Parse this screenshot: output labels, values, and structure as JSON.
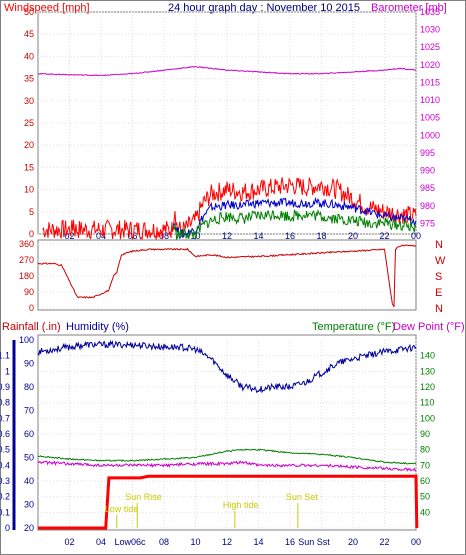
{
  "header": {
    "windspeed_label": "Windspeed [mph]",
    "title": "24 hour graph day : November 10 2015",
    "barometer_label": "Barometer [mb]"
  },
  "mid_labels": {
    "rainfall": "Rainfall (.in)",
    "humidity": "Humidity (%)",
    "temperature": "Temperature (°F)",
    "dewpoint": "Dew Point (°F)"
  },
  "colors": {
    "wind_gust": "#ff0000",
    "wind_avg": "#0000cc",
    "wind_min": "#008000",
    "barometer": "#cc00cc",
    "direction": "#cc0000",
    "humidity": "#000099",
    "temperature": "#008000",
    "dewpoint": "#cc00cc",
    "rain": "#ff0000",
    "tide_sun": "#cccc00"
  },
  "chart_data": [
    {
      "type": "line",
      "x_ticks": [
        "02",
        "04",
        "06",
        "08",
        "10",
        "12",
        "14",
        "16",
        "18",
        "20",
        "22",
        "00"
      ],
      "xlim": [
        0,
        24
      ],
      "left_ticks": [
        "0",
        "5",
        "10",
        "15",
        "20",
        "25",
        "30",
        "35",
        "40",
        "45",
        "50"
      ],
      "ylim": [
        0,
        50
      ],
      "right_ticks": [
        "975",
        "980",
        "985",
        "990",
        "995",
        "1000",
        "1005",
        "1010",
        "1015",
        "1020",
        "1025",
        "1030",
        "1035"
      ],
      "y2lim": [
        972,
        1035
      ],
      "series": [
        {
          "name": "gust",
          "x": [
            0.3,
            2.2,
            2.25,
            2.35,
            8.5,
            8.7,
            8.8,
            9.0,
            9.3,
            10.0,
            10.5,
            11,
            12,
            13,
            14,
            15,
            16,
            17,
            18,
            19,
            20,
            21,
            22,
            23,
            24
          ],
          "y": [
            1,
            1,
            3,
            1,
            1,
            6,
            2,
            1,
            1,
            3,
            7,
            9,
            10,
            9.5,
            10,
            10.5,
            11,
            10.5,
            11,
            10,
            8,
            6,
            5,
            4.5,
            4
          ]
        },
        {
          "name": "avg",
          "x": [
            8.6,
            8.8,
            9.0,
            9.3,
            10.0,
            10.5,
            11,
            12,
            13,
            14,
            15,
            16,
            17,
            18,
            19,
            20,
            21,
            22,
            23,
            24
          ],
          "y": [
            3,
            1,
            0,
            0,
            1,
            4,
            6,
            6.5,
            6.5,
            7,
            7,
            7,
            7,
            7,
            6.5,
            6,
            5,
            4,
            3.5,
            3
          ]
        },
        {
          "name": "min",
          "x": [
            8.6,
            8.8,
            9.0,
            9.3,
            10.0,
            10.5,
            11,
            12,
            13,
            14,
            15,
            16,
            17,
            18,
            19,
            20,
            21,
            22,
            23,
            24
          ],
          "y": [
            2,
            0,
            0,
            0,
            0,
            2,
            3,
            4,
            3.5,
            4,
            4.5,
            4,
            4.5,
            4,
            3.5,
            3,
            2.5,
            2.5,
            2,
            1.5
          ]
        },
        {
          "name": "barometer",
          "x": [
            0,
            2,
            4,
            6,
            8,
            10,
            12,
            14,
            16,
            18,
            20,
            22,
            23,
            24
          ],
          "y": [
            1017.5,
            1017.2,
            1017,
            1017.5,
            1018.5,
            1019.5,
            1018.5,
            1018,
            1017.5,
            1017.5,
            1018,
            1018.5,
            1019,
            1018.5
          ]
        }
      ]
    },
    {
      "type": "line",
      "x_ticks": [
        "02",
        "04",
        "06",
        "08",
        "10",
        "12",
        "14",
        "16",
        "18",
        "20",
        "22",
        "00"
      ],
      "y_ticks": [
        "0",
        "90",
        "180",
        "270",
        "360"
      ],
      "ylim": [
        0,
        360
      ],
      "compass": [
        "N",
        "W",
        "S",
        "E",
        "N"
      ],
      "series": [
        {
          "name": "direction",
          "x": [
            0,
            1,
            1.5,
            2.5,
            3.0,
            3.5,
            4.5,
            4.8,
            5.0,
            5.3,
            6,
            7,
            8,
            9.5,
            10,
            11,
            12,
            14,
            16,
            18,
            20,
            21,
            22,
            22.5,
            22.6,
            22.7,
            22.8,
            23,
            24
          ],
          "y": [
            250,
            250,
            240,
            60,
            60,
            60,
            100,
            180,
            200,
            300,
            320,
            330,
            330,
            330,
            290,
            300,
            285,
            290,
            300,
            310,
            320,
            325,
            330,
            20,
            10,
            330,
            340,
            350,
            350
          ]
        }
      ]
    },
    {
      "type": "line",
      "x_ticks": [
        "02",
        "04",
        "06",
        "08",
        "10",
        "12",
        "14",
        "16",
        "18",
        "20",
        "22",
        "00"
      ],
      "rain_ticks": [
        "0",
        "0.1",
        "0.2",
        "0.3",
        "0.4",
        "0.5",
        "0.6",
        "0.7",
        "0.8",
        "0.9",
        "1",
        "1.1"
      ],
      "rain_lim": [
        0,
        1.2
      ],
      "humidity_ticks": [
        "20",
        "30",
        "40",
        "50",
        "60",
        "70",
        "80",
        "90",
        "100"
      ],
      "humidity_lim": [
        20,
        100
      ],
      "temp_ticks": [
        "40",
        "50",
        "60",
        "70",
        "80",
        "90",
        "100",
        "110",
        "120",
        "130",
        "140"
      ],
      "temp_lim": [
        30,
        150
      ],
      "annotations": [
        "Low tide",
        "Sun Rise",
        "High tide",
        "Sun Set"
      ],
      "x_extra_labels": [
        "Low06c",
        "Sun Sst"
      ],
      "series": [
        {
          "name": "humidity",
          "x": [
            0,
            1,
            3,
            6,
            8,
            9,
            10,
            11,
            12,
            13,
            14,
            15,
            16,
            17,
            18,
            19,
            20,
            22,
            24
          ],
          "y": [
            95,
            96,
            98,
            98,
            97,
            97,
            96,
            92,
            85,
            80,
            79,
            80,
            80,
            82,
            86,
            90,
            92,
            95,
            97
          ]
        },
        {
          "name": "temperature",
          "x": [
            0,
            2,
            4,
            6,
            8,
            10,
            11,
            12,
            13,
            14,
            16,
            18,
            20,
            22,
            24
          ],
          "y": [
            76,
            74,
            73,
            73,
            74,
            75,
            77,
            79,
            80,
            80,
            78,
            77,
            75,
            72,
            71
          ]
        },
        {
          "name": "dew_point",
          "x": [
            0,
            2,
            4,
            6,
            8,
            10,
            12,
            13,
            14,
            16,
            18,
            20,
            22,
            24
          ],
          "y": [
            72,
            71,
            70,
            70,
            70,
            71,
            71,
            72,
            70,
            70,
            70,
            69,
            68,
            67
          ]
        },
        {
          "name": "rainfall",
          "x": [
            0,
            4.3,
            4.5,
            6.5,
            7,
            24,
            24.05
          ],
          "y": [
            0,
            0,
            0.32,
            0.32,
            0.33,
            0.33,
            0
          ]
        }
      ]
    }
  ]
}
